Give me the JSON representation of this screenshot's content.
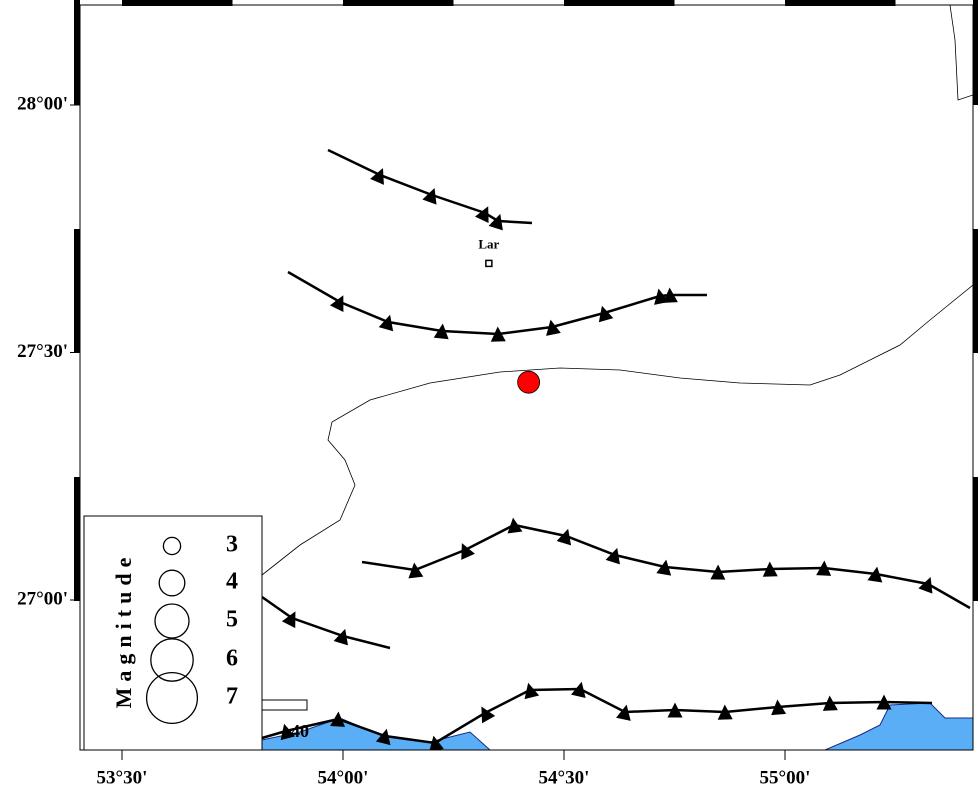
{
  "map": {
    "lon_ticks": [
      {
        "value": 53.5,
        "label": "53°30'"
      },
      {
        "value": 54.0,
        "label": "54°00'"
      },
      {
        "value": 54.5,
        "label": "54°30'"
      },
      {
        "value": 55.0,
        "label": "55°00'"
      }
    ],
    "lat_ticks": [
      {
        "value": 28.0,
        "label": "28°00'"
      },
      {
        "value": 27.5,
        "label": "27°30'"
      },
      {
        "value": 27.0,
        "label": "27°00'"
      }
    ],
    "city": {
      "name": "Lar",
      "lon": 54.33,
      "lat": 27.68
    },
    "event": {
      "lon": 54.42,
      "lat": 27.44,
      "color": "#ff0000"
    },
    "legend": {
      "title": "Magnitude",
      "magnitudes": [
        3,
        4,
        5,
        6,
        7
      ]
    },
    "scale_bar": {
      "label": "40"
    }
  }
}
